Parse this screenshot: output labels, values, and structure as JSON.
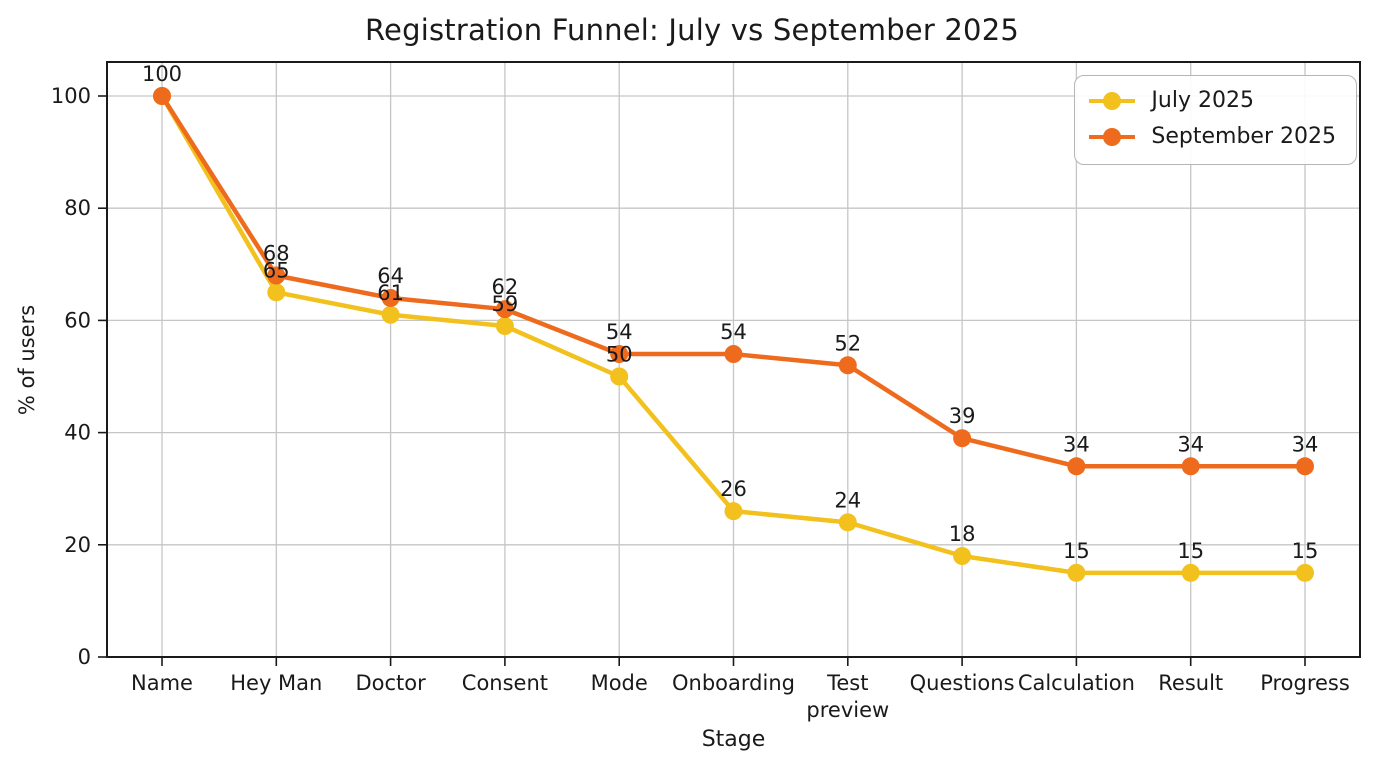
{
  "chart_data": {
    "type": "line",
    "title": "Registration Funnel: July vs September 2025",
    "xlabel": "Stage",
    "ylabel": "% of users",
    "ylim": [
      0,
      106
    ],
    "yticks": [
      0,
      20,
      40,
      60,
      80,
      100
    ],
    "grid": true,
    "legend_position": "upper right",
    "categories": [
      "Name",
      "Hey Man",
      "Doctor",
      "Consent",
      "Mode",
      "Onboarding",
      "Test\npreview",
      "Questions",
      "Calculation",
      "Result",
      "Progress"
    ],
    "series": [
      {
        "name": "July 2025",
        "color": "#f2c11d",
        "values": [
          100,
          65,
          61,
          59,
          50,
          26,
          24,
          18,
          15,
          15,
          15
        ]
      },
      {
        "name": "September 2025",
        "color": "#ee6a1c",
        "values": [
          100,
          68,
          64,
          62,
          54,
          54,
          52,
          39,
          34,
          34,
          34
        ]
      }
    ],
    "style": {
      "grid_color": "#c6c6c6",
      "axis_color": "#1a1a1a",
      "text_color": "#1a1a1a",
      "background": "#ffffff"
    }
  }
}
